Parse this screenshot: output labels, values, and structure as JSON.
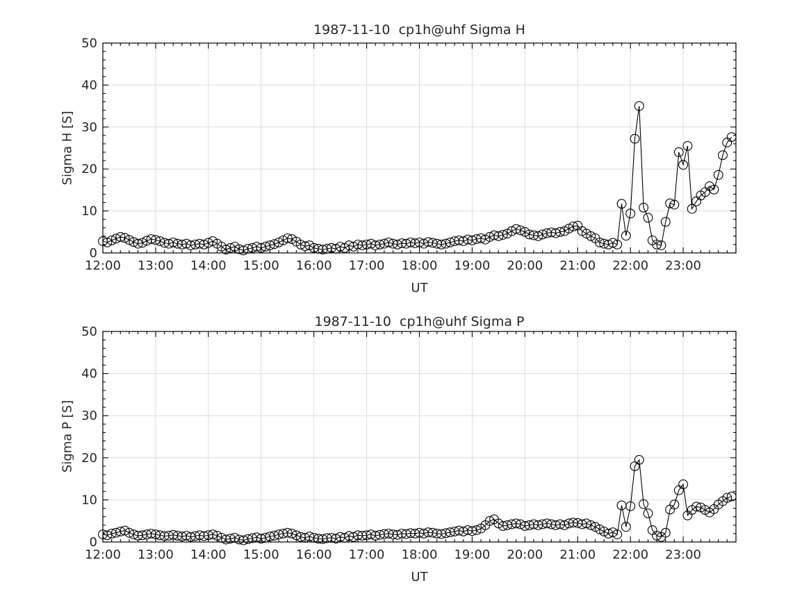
{
  "figure": {
    "background": "#ffffff",
    "axis_color": "#000000",
    "grid_color": "#dcdcdc",
    "text_color": "#262626"
  },
  "chart_data": [
    {
      "type": "line",
      "title": "1987-11-10  cp1h@uhf Sigma H",
      "xlabel": "UT",
      "ylabel": "Sigma H [S]",
      "x_tick_labels": [
        "12:00",
        "13:00",
        "14:00",
        "15:00",
        "16:00",
        "17:00",
        "18:00",
        "19:00",
        "20:00",
        "21:00",
        "22:00",
        "23:00"
      ],
      "x_hours_range": [
        12,
        24
      ],
      "x_minor_step_minutes": 10,
      "ylim": [
        0,
        50
      ],
      "y_tick_labels": [
        "0",
        "10",
        "20",
        "30",
        "40",
        "50"
      ],
      "y_tick_step": 10,
      "y_minor_step": 2,
      "grid": true,
      "legend": null,
      "marker": "open-circle",
      "line_color": "#000000",
      "time_start": "12:00",
      "time_step_minutes": 5,
      "values": [
        2.8,
        2.5,
        3.0,
        3.4,
        3.8,
        3.6,
        3.1,
        2.6,
        2.2,
        2.4,
        2.9,
        3.3,
        3.1,
        2.8,
        2.4,
        2.2,
        2.5,
        2.2,
        2.0,
        2.2,
        1.8,
        2.0,
        2.2,
        2.0,
        2.4,
        2.8,
        2.2,
        1.5,
        0.8,
        1.2,
        1.5,
        0.9,
        0.6,
        1.0,
        1.2,
        1.5,
        1.2,
        1.5,
        1.8,
        2.1,
        2.5,
        3.0,
        3.5,
        3.3,
        2.7,
        2.0,
        1.6,
        1.8,
        1.2,
        1.0,
        0.8,
        1.0,
        1.2,
        1.0,
        1.5,
        1.2,
        1.8,
        1.5,
        2.0,
        1.8,
        2.0,
        2.2,
        1.8,
        2.0,
        2.2,
        2.5,
        2.2,
        2.0,
        2.3,
        2.2,
        2.5,
        2.3,
        2.5,
        2.2,
        2.6,
        2.4,
        2.2,
        2.0,
        2.2,
        2.5,
        2.8,
        3.0,
        2.8,
        3.2,
        3.0,
        3.3,
        3.5,
        3.2,
        3.8,
        4.2,
        4.0,
        4.3,
        4.6,
        5.2,
        5.7,
        5.4,
        5.0,
        4.4,
        4.2,
        4.0,
        4.4,
        4.7,
        4.9,
        4.7,
        5.0,
        5.2,
        5.8,
        6.3,
        6.5,
        5.2,
        4.6,
        4.0,
        3.5,
        2.5,
        2.2,
        2.0,
        2.4,
        2.0,
        11.7,
        4.1,
        9.4,
        27.2,
        35.0,
        10.8,
        8.4,
        3.0,
        2.0,
        1.8,
        7.4,
        11.8,
        11.5,
        24.0,
        21.0,
        25.5,
        10.5,
        12.3,
        13.7,
        14.5,
        15.9,
        15.1,
        18.6,
        23.3,
        26.3,
        27.6
      ]
    },
    {
      "type": "line",
      "title": "1987-11-10  cp1h@uhf Sigma P",
      "xlabel": "UT",
      "ylabel": "Sigma P [S]",
      "x_tick_labels": [
        "12:00",
        "13:00",
        "14:00",
        "15:00",
        "16:00",
        "17:00",
        "18:00",
        "19:00",
        "20:00",
        "21:00",
        "22:00",
        "23:00"
      ],
      "x_hours_range": [
        12,
        24
      ],
      "x_minor_step_minutes": 10,
      "ylim": [
        0,
        50
      ],
      "y_tick_labels": [
        "0",
        "10",
        "20",
        "30",
        "40",
        "50"
      ],
      "y_tick_step": 10,
      "y_minor_step": 2,
      "grid": true,
      "legend": null,
      "marker": "open-circle",
      "line_color": "#000000",
      "time_start": "12:00",
      "time_step_minutes": 5,
      "values": [
        1.8,
        1.6,
        2.0,
        2.2,
        2.5,
        2.7,
        2.2,
        1.8,
        1.5,
        1.6,
        1.8,
        2.0,
        1.8,
        1.6,
        1.4,
        1.5,
        1.7,
        1.5,
        1.3,
        1.5,
        1.2,
        1.4,
        1.6,
        1.4,
        1.6,
        1.8,
        1.5,
        1.0,
        0.6,
        0.8,
        1.0,
        0.6,
        0.4,
        0.7,
        0.9,
        1.1,
        0.8,
        1.0,
        1.3,
        1.5,
        1.8,
        2.0,
        2.2,
        2.0,
        1.6,
        1.2,
        1.0,
        1.3,
        1.0,
        0.8,
        0.7,
        0.9,
        1.0,
        0.8,
        1.2,
        1.0,
        1.4,
        1.2,
        1.6,
        1.5,
        1.6,
        1.8,
        1.5,
        1.7,
        1.9,
        2.0,
        1.8,
        1.7,
        2.0,
        1.9,
        2.1,
        2.0,
        2.2,
        2.0,
        2.3,
        2.2,
        2.0,
        1.9,
        2.1,
        2.3,
        2.5,
        2.7,
        2.5,
        2.8,
        2.6,
        2.8,
        3.2,
        4.0,
        5.0,
        5.4,
        4.4,
        3.8,
        4.0,
        4.2,
        4.4,
        4.2,
        3.8,
        4.0,
        4.2,
        4.0,
        4.2,
        4.4,
        4.2,
        4.0,
        4.2,
        4.0,
        4.4,
        4.6,
        4.5,
        4.2,
        4.4,
        4.0,
        3.6,
        3.0,
        2.5,
        2.0,
        2.3,
        1.8,
        8.7,
        3.6,
        8.5,
        18.0,
        19.5,
        9.0,
        6.8,
        2.8,
        1.5,
        1.2,
        2.2,
        7.7,
        8.9,
        12.3,
        13.7,
        6.3,
        7.6,
        8.4,
        8.2,
        7.6,
        7.0,
        7.8,
        8.9,
        9.7,
        10.5,
        10.8
      ]
    }
  ]
}
